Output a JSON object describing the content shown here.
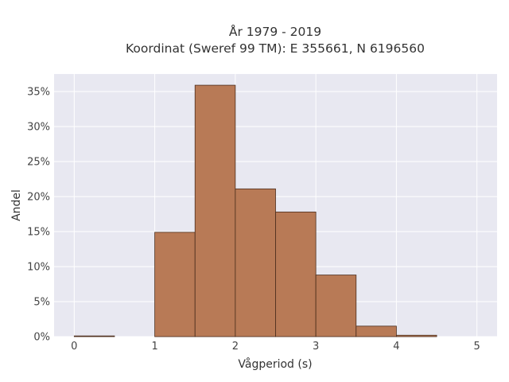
{
  "chart_data": {
    "type": "bar",
    "title_line1": "År 1979 - 2019",
    "title_line2": "Koordinat (Sweref 99 TM): E 355661, N 6196560",
    "xlabel": "Vågperiod (s)",
    "ylabel": "Andel",
    "xlim": [
      -0.25,
      5.25
    ],
    "ylim": [
      0,
      37.5
    ],
    "x_ticks": [
      0,
      1,
      2,
      3,
      4,
      5
    ],
    "x_tick_labels": [
      "0",
      "1",
      "2",
      "3",
      "4",
      "5"
    ],
    "y_ticks": [
      0,
      5,
      10,
      15,
      20,
      25,
      30,
      35
    ],
    "y_tick_labels": [
      "0%",
      "5%",
      "10%",
      "15%",
      "20%",
      "25%",
      "30%",
      "35%"
    ],
    "bin_width": 0.5,
    "bins": [
      {
        "x0": 0.0,
        "value": 0.1
      },
      {
        "x0": 0.5,
        "value": 0.0
      },
      {
        "x0": 1.0,
        "value": 14.9
      },
      {
        "x0": 1.5,
        "value": 35.9
      },
      {
        "x0": 2.0,
        "value": 21.1
      },
      {
        "x0": 2.5,
        "value": 17.8
      },
      {
        "x0": 3.0,
        "value": 8.8
      },
      {
        "x0": 3.5,
        "value": 1.5
      },
      {
        "x0": 4.0,
        "value": 0.2
      },
      {
        "x0": 4.5,
        "value": 0.0
      }
    ],
    "grid": true,
    "colors": {
      "bar_fill": "#b87a56",
      "bar_edge": "#4a2c1c",
      "plot_bg": "#e8e8f1",
      "grid": "#ffffff"
    }
  }
}
